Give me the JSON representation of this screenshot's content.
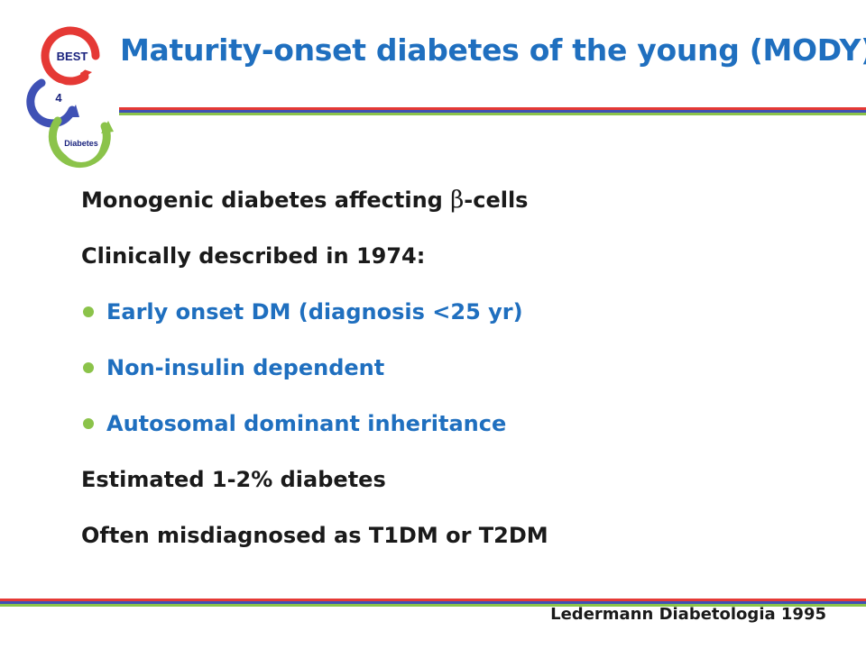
{
  "logo": {
    "words": [
      "BEST",
      "4",
      "Diabetes"
    ],
    "colors": {
      "red": "#e53935",
      "blue": "#3f51b5",
      "green": "#8bc34a"
    }
  },
  "title": "Maturity-onset diabetes of the young (MODY)",
  "stripe_colors": [
    "#e53935",
    "#3f51b5",
    "#8bc34a"
  ],
  "lines": [
    {
      "text": "Monogenic diabetes affecting ",
      "symbol": "β",
      "suffix": "-cells"
    },
    {
      "text": "Clinically described in 1974:"
    },
    {
      "text": "Early onset DM (diagnosis <25 yr)"
    },
    {
      "text": "Non-insulin dependent"
    },
    {
      "text": "Autosomal dominant inheritance"
    },
    {
      "text": "Estimated 1-2% diabetes"
    },
    {
      "text": "Often misdiagnosed as T1DM or T2DM"
    }
  ],
  "citation": "Ledermann Diabetologia 1995",
  "colors": {
    "title_blue": "#1f6fbf",
    "bullet_green": "#8bc34a",
    "text": "#1a1a1a"
  }
}
